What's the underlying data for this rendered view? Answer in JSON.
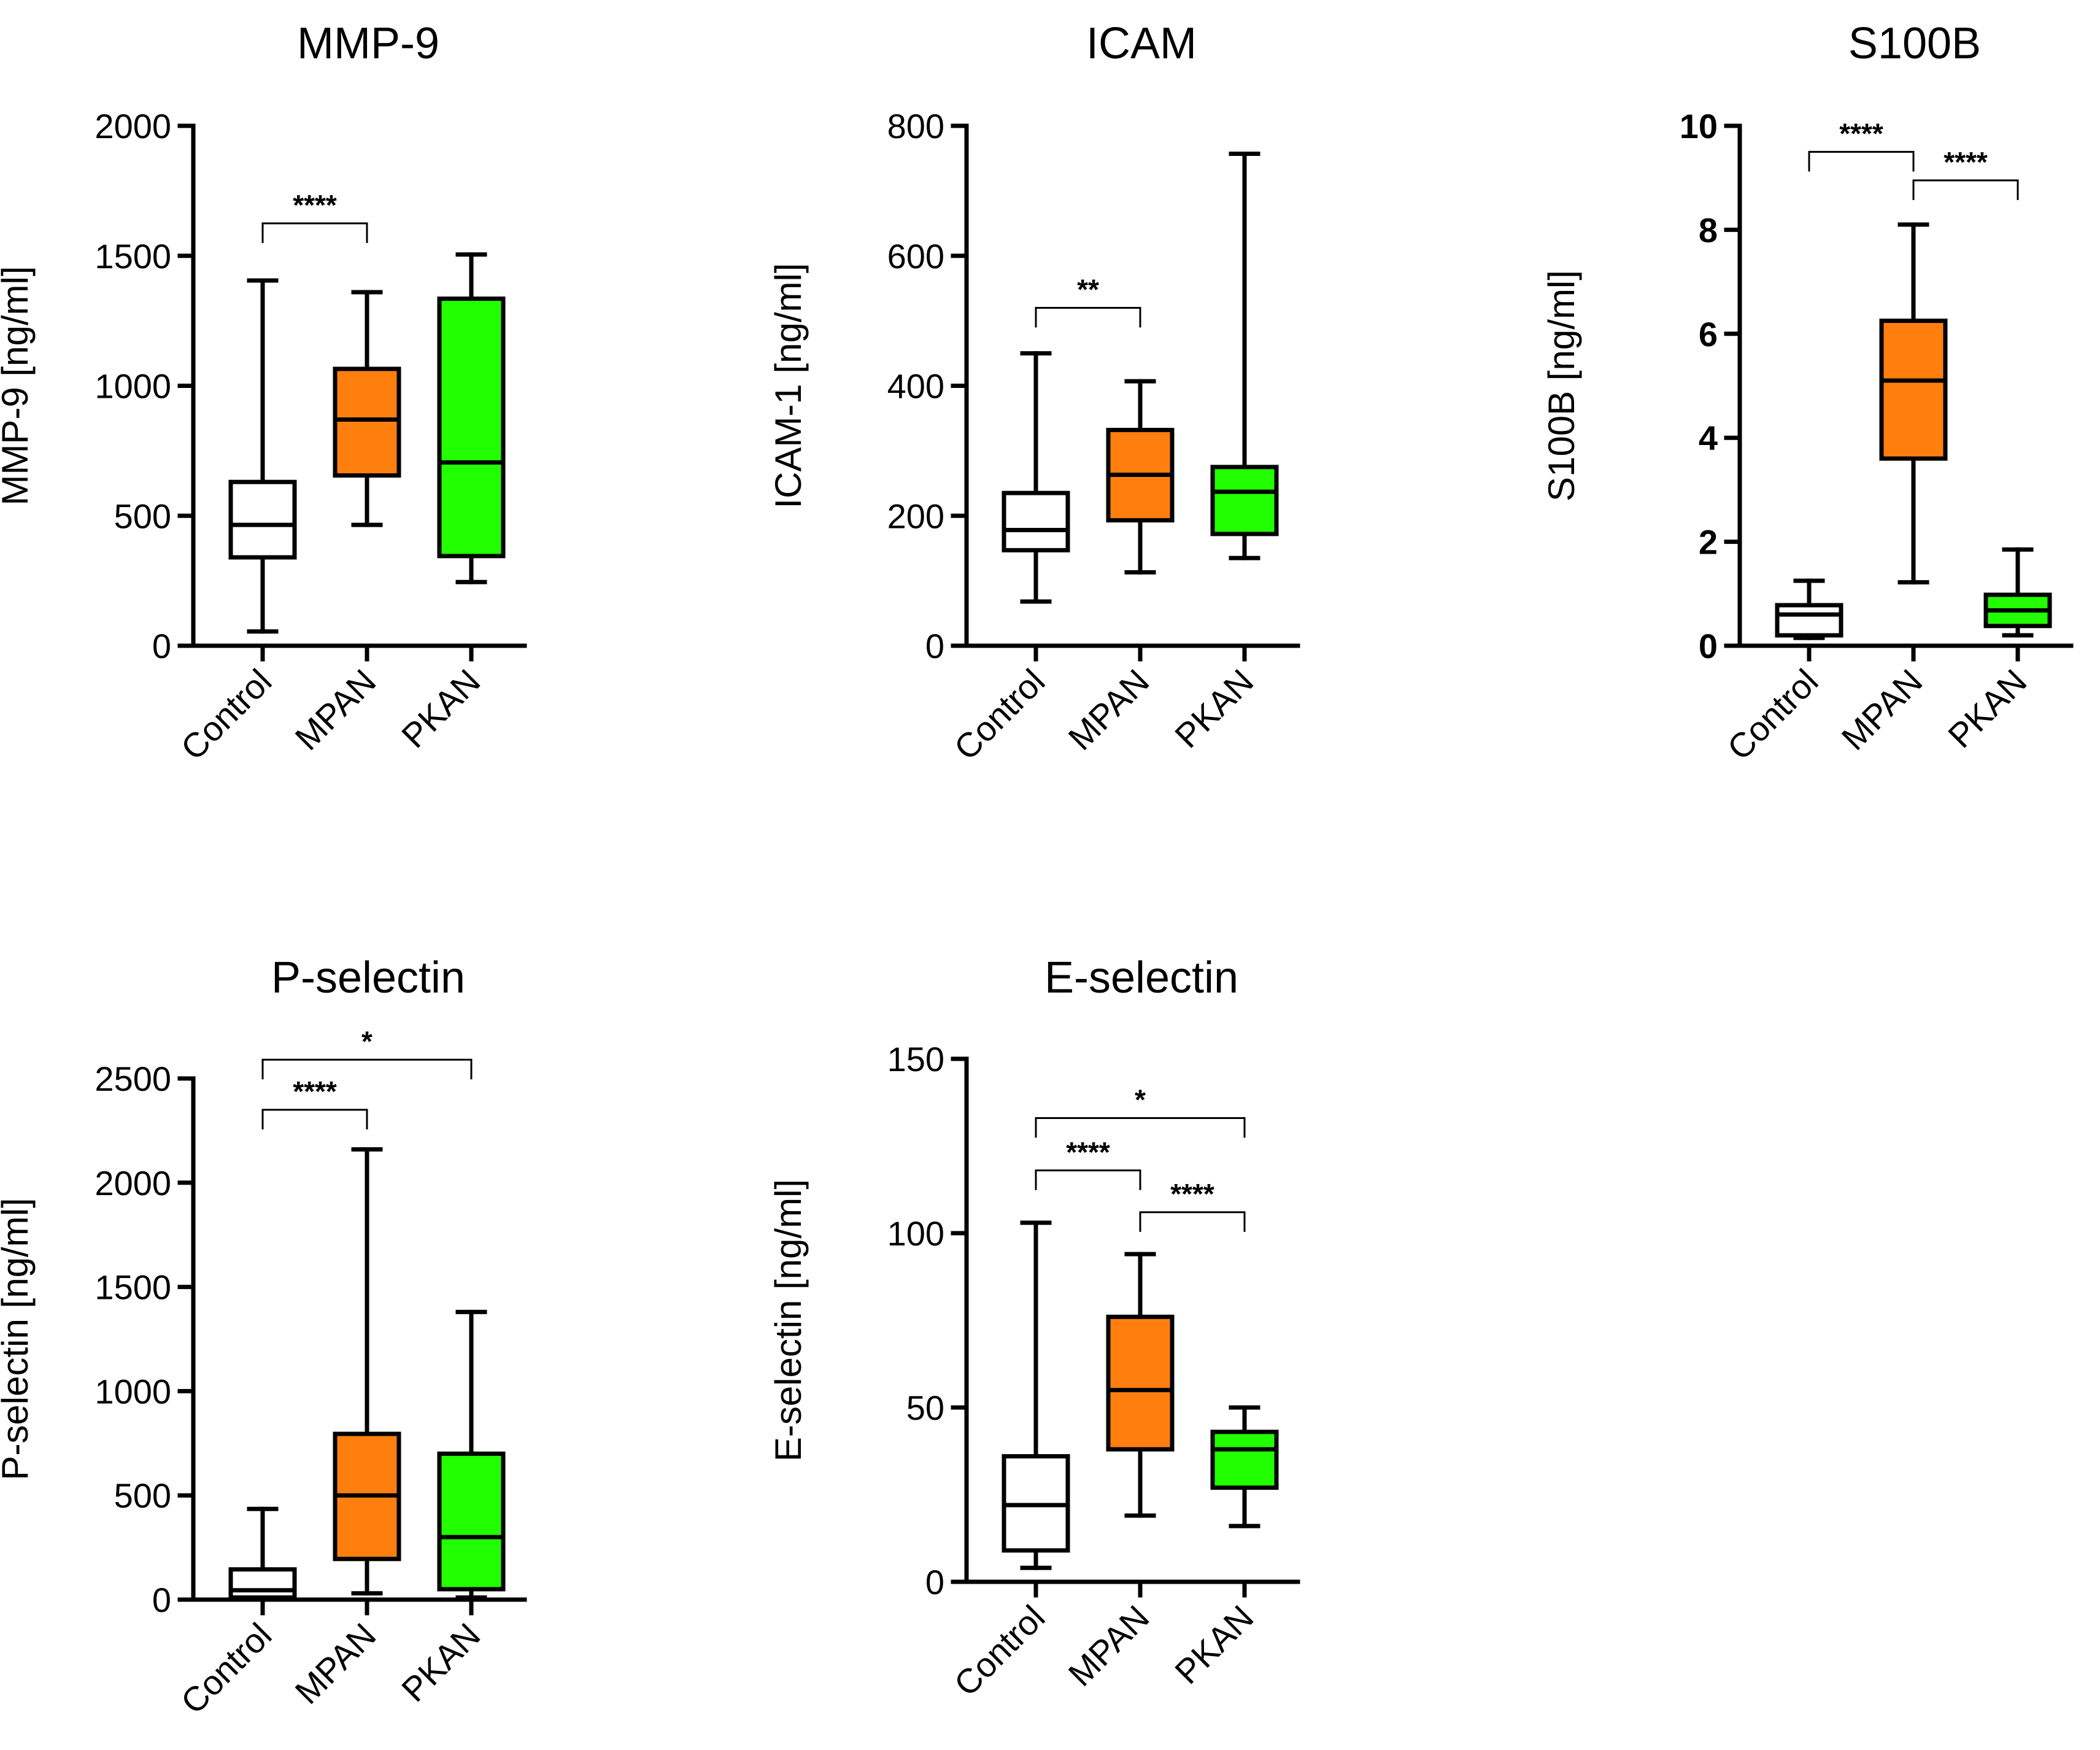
{
  "colors": {
    "Control": "#ffffff",
    "MPAN": "#ff7f0e",
    "PKAN": "#22ff00",
    "stroke": "#000000"
  },
  "chart_data": [
    {
      "type": "box",
      "title": "MMP-9",
      "ylabel": "MMP-9 [ng/ml]",
      "ylim": [
        0,
        2000
      ],
      "yticks": [
        0,
        500,
        1000,
        1500,
        2000
      ],
      "ytick_labels": [
        "0",
        "500",
        "1000",
        "1500",
        "2000"
      ],
      "bold_ticks": false,
      "categories": [
        "Control",
        "MPAN",
        "PKAN"
      ],
      "boxes": [
        {
          "group": "Control",
          "min": 55,
          "q1": 340,
          "median": 465,
          "q3": 630,
          "max": 1405
        },
        {
          "group": "MPAN",
          "min": 465,
          "q1": 655,
          "median": 870,
          "q3": 1065,
          "max": 1360
        },
        {
          "group": "PKAN",
          "min": 245,
          "q1": 345,
          "median": 705,
          "q3": 1335,
          "max": 1505
        }
      ],
      "brackets": [
        {
          "from": "Control",
          "to": "MPAN",
          "y": 1625,
          "label": "****"
        }
      ]
    },
    {
      "type": "box",
      "title": "ICAM",
      "ylabel": "ICAM-1 [ng/ml]",
      "ylim": [
        0,
        800
      ],
      "yticks": [
        0,
        200,
        400,
        600,
        800
      ],
      "ytick_labels": [
        "0",
        "200",
        "400",
        "600",
        "800"
      ],
      "bold_ticks": false,
      "categories": [
        "Control",
        "MPAN",
        "PKAN"
      ],
      "boxes": [
        {
          "group": "Control",
          "min": 68,
          "q1": 147,
          "median": 178,
          "q3": 235,
          "max": 450
        },
        {
          "group": "MPAN",
          "min": 113,
          "q1": 193,
          "median": 263,
          "q3": 332,
          "max": 407
        },
        {
          "group": "PKAN",
          "min": 135,
          "q1": 172,
          "median": 237,
          "q3": 275,
          "max": 757
        }
      ],
      "brackets": [
        {
          "from": "Control",
          "to": "MPAN",
          "y": 520,
          "label": "**"
        }
      ]
    },
    {
      "type": "box",
      "title": "S100B",
      "ylabel": "S100B [ng/ml]",
      "ylim": [
        0,
        10
      ],
      "yticks": [
        0,
        2,
        4,
        6,
        8,
        10
      ],
      "ytick_labels": [
        "0",
        "2",
        "4",
        "6",
        "8",
        "10"
      ],
      "bold_ticks": true,
      "categories": [
        "Control",
        "MPAN",
        "PKAN"
      ],
      "boxes": [
        {
          "group": "Control",
          "min": 0.15,
          "q1": 0.2,
          "median": 0.6,
          "q3": 0.78,
          "max": 1.25
        },
        {
          "group": "MPAN",
          "min": 1.22,
          "q1": 3.6,
          "median": 5.1,
          "q3": 6.25,
          "max": 8.1
        },
        {
          "group": "PKAN",
          "min": 0.2,
          "q1": 0.38,
          "median": 0.68,
          "q3": 0.98,
          "max": 1.85
        }
      ],
      "brackets": [
        {
          "from": "Control",
          "to": "MPAN",
          "y": 9.5,
          "label": "****"
        },
        {
          "from": "MPAN",
          "to": "PKAN",
          "y": 8.95,
          "label": "****"
        }
      ]
    },
    {
      "type": "box",
      "title": "P-selectin",
      "ylabel": "P-selectin [ng/ml]",
      "ylim": [
        0,
        2500
      ],
      "yticks": [
        0,
        500,
        1000,
        1500,
        2000,
        2500
      ],
      "ytick_labels": [
        "0",
        "500",
        "1000",
        "1500",
        "2000",
        "2500"
      ],
      "bold_ticks": false,
      "categories": [
        "Control",
        "MPAN",
        "PKAN"
      ],
      "boxes": [
        {
          "group": "Control",
          "min": 0,
          "q1": 10,
          "median": 45,
          "q3": 145,
          "max": 435
        },
        {
          "group": "MPAN",
          "min": 30,
          "q1": 195,
          "median": 500,
          "q3": 795,
          "max": 2160
        },
        {
          "group": "PKAN",
          "min": 10,
          "q1": 50,
          "median": 300,
          "q3": 700,
          "max": 1380
        }
      ],
      "brackets": [
        {
          "from": "Control",
          "to": "MPAN",
          "y": 2350,
          "label": "****"
        },
        {
          "from": "Control",
          "to": "PKAN",
          "y": 2590,
          "label": "*"
        }
      ]
    },
    {
      "type": "box",
      "title": "E-selectin",
      "ylabel": "E-selectin [ng/ml]",
      "ylim": [
        0,
        150
      ],
      "yticks": [
        0,
        50,
        100,
        150
      ],
      "ytick_labels": [
        "0",
        "50",
        "100",
        "150"
      ],
      "bold_ticks": false,
      "categories": [
        "Control",
        "MPAN",
        "PKAN"
      ],
      "boxes": [
        {
          "group": "Control",
          "min": 4,
          "q1": 9,
          "median": 22,
          "q3": 36,
          "max": 103
        },
        {
          "group": "MPAN",
          "min": 19,
          "q1": 38,
          "median": 55,
          "q3": 76,
          "max": 94
        },
        {
          "group": "PKAN",
          "min": 16,
          "q1": 27,
          "median": 38,
          "q3": 43,
          "max": 50
        }
      ],
      "brackets": [
        {
          "from": "Control",
          "to": "MPAN",
          "y": 118,
          "label": "****"
        },
        {
          "from": "MPAN",
          "to": "PKAN",
          "y": 106,
          "label": "****"
        },
        {
          "from": "Control",
          "to": "PKAN",
          "y": 133,
          "label": "*"
        }
      ]
    }
  ]
}
